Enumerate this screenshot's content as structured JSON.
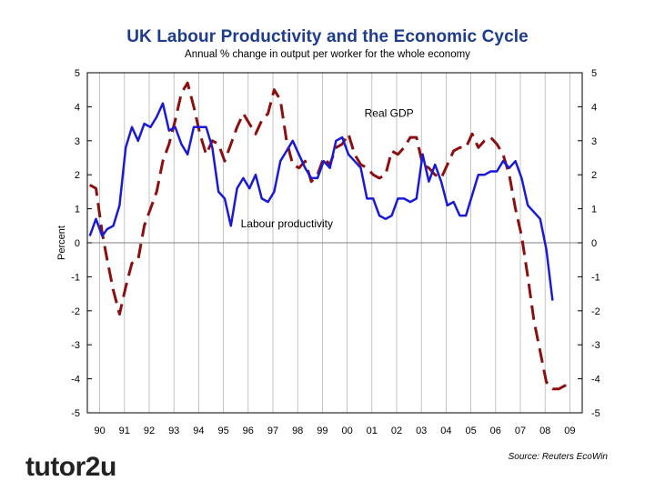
{
  "header": {
    "title": "UK Labour Productivity and the Economic Cycle",
    "subtitle": "Annual % change in output per worker for the whole economy"
  },
  "footer": {
    "source": "Source: Reuters EcoWin",
    "logo": "tutor2u"
  },
  "colors": {
    "productivity": "#1a1ad6",
    "gdp": "#8b0f0f",
    "title": "#1f3c8c",
    "grid": "#b4b4b4"
  },
  "chart_data": {
    "type": "line",
    "title": "UK Labour Productivity and the Economic Cycle",
    "subtitle": "Annual % change in output per worker for the whole economy",
    "ylabel": "Percent",
    "xlabel": "",
    "ylim": [
      -5,
      5
    ],
    "xlim": [
      1989.5,
      2009.5
    ],
    "yticks": [
      5,
      4,
      3,
      2,
      1,
      0,
      -1,
      -2,
      -3,
      -4,
      -5
    ],
    "xtick_labels": [
      "90",
      "91",
      "92",
      "93",
      "94",
      "95",
      "96",
      "97",
      "98",
      "99",
      "00",
      "01",
      "02",
      "03",
      "04",
      "05",
      "06",
      "07",
      "08",
      "09"
    ],
    "grid": "vertical",
    "annotations": [
      {
        "text": "Real GDP",
        "x": 2000.7,
        "y": 3.7
      },
      {
        "text": "Labour productivity",
        "x": 1995.7,
        "y": 0.45
      }
    ],
    "series": [
      {
        "name": "Real GDP",
        "style": "dashed",
        "x": [
          1989.6,
          1989.85,
          1990.1,
          1990.3,
          1990.55,
          1990.8,
          1991.05,
          1991.3,
          1991.55,
          1991.8,
          1992.05,
          1992.3,
          1992.55,
          1992.8,
          1993.05,
          1993.3,
          1993.55,
          1993.8,
          1994.05,
          1994.3,
          1994.55,
          1994.8,
          1995.05,
          1995.3,
          1995.55,
          1995.8,
          1996.05,
          1996.3,
          1996.55,
          1996.8,
          1997.05,
          1997.3,
          1997.55,
          1997.8,
          1998.05,
          1998.3,
          1998.55,
          1998.8,
          1999.05,
          1999.3,
          1999.55,
          1999.8,
          2000.05,
          2000.3,
          2000.55,
          2000.8,
          2001.05,
          2001.3,
          2001.55,
          2001.8,
          2002.05,
          2002.3,
          2002.55,
          2002.8,
          2003.05,
          2003.3,
          2003.55,
          2003.8,
          2004.05,
          2004.3,
          2004.55,
          2004.8,
          2005.05,
          2005.3,
          2005.55,
          2005.8,
          2006.05,
          2006.3,
          2006.55,
          2006.8,
          2007.05,
          2007.3,
          2007.55,
          2007.8,
          2008.05,
          2008.3,
          2008.55,
          2008.8,
          2009.0
        ],
        "values": [
          1.7,
          1.6,
          0.3,
          -0.5,
          -1.4,
          -2.1,
          -1.3,
          -0.6,
          -0.5,
          0.5,
          1.0,
          1.5,
          2.4,
          2.9,
          3.6,
          4.4,
          4.7,
          4.0,
          3.2,
          2.6,
          3.0,
          2.9,
          2.4,
          2.9,
          3.4,
          3.8,
          3.5,
          3.2,
          3.6,
          3.8,
          4.5,
          4.2,
          3.0,
          2.3,
          2.2,
          2.4,
          1.8,
          2.0,
          2.5,
          2.3,
          2.8,
          2.9,
          3.2,
          2.6,
          2.3,
          2.2,
          2.0,
          1.9,
          2.0,
          2.7,
          2.6,
          2.8,
          3.1,
          3.1,
          2.3,
          2.2,
          2.0,
          1.9,
          2.3,
          2.7,
          2.8,
          2.8,
          3.2,
          2.8,
          3.0,
          3.1,
          2.9,
          2.6,
          2.0,
          1.0,
          0.2,
          -1.0,
          -2.3,
          -3.2,
          -4.1,
          -4.3,
          -4.3,
          -4.2,
          -4.2
        ]
      },
      {
        "name": "Labour productivity",
        "style": "solid",
        "x": [
          1989.6,
          1989.85,
          1990.1,
          1990.3,
          1990.55,
          1990.8,
          1991.05,
          1991.3,
          1991.55,
          1991.8,
          1992.05,
          1992.3,
          1992.55,
          1992.8,
          1993.05,
          1993.3,
          1993.55,
          1993.8,
          1994.05,
          1994.3,
          1994.55,
          1994.8,
          1995.05,
          1995.3,
          1995.55,
          1995.8,
          1996.05,
          1996.3,
          1996.55,
          1996.8,
          1997.05,
          1997.3,
          1997.55,
          1997.8,
          1998.05,
          1998.3,
          1998.55,
          1998.8,
          1999.05,
          1999.3,
          1999.55,
          1999.8,
          2000.05,
          2000.3,
          2000.55,
          2000.8,
          2001.05,
          2001.3,
          2001.55,
          2001.8,
          2002.05,
          2002.3,
          2002.55,
          2002.8,
          2003.05,
          2003.3,
          2003.55,
          2003.8,
          2004.05,
          2004.3,
          2004.55,
          2004.8,
          2005.05,
          2005.3,
          2005.55,
          2005.8,
          2006.05,
          2006.3,
          2006.55,
          2006.8,
          2007.05,
          2007.3,
          2007.55,
          2007.8,
          2008.05,
          2008.3
        ],
        "values": [
          0.2,
          0.7,
          0.2,
          0.4,
          0.5,
          1.1,
          2.8,
          3.4,
          3.0,
          3.5,
          3.4,
          3.7,
          4.1,
          3.3,
          3.4,
          2.9,
          2.6,
          3.4,
          3.4,
          3.4,
          2.8,
          1.5,
          1.3,
          0.5,
          1.6,
          1.9,
          1.6,
          2.0,
          1.3,
          1.2,
          1.5,
          2.4,
          2.7,
          3.0,
          2.6,
          2.2,
          1.9,
          1.9,
          2.4,
          2.2,
          3.0,
          3.1,
          2.6,
          2.4,
          2.2,
          1.3,
          1.3,
          0.8,
          0.7,
          0.8,
          1.3,
          1.3,
          1.2,
          1.3,
          2.6,
          1.8,
          2.3,
          1.8,
          1.1,
          1.2,
          0.8,
          0.8,
          1.4,
          2.0,
          2.0,
          2.1,
          2.1,
          2.4,
          2.2,
          2.4,
          1.9,
          1.1,
          0.9,
          0.7,
          -0.2,
          -1.7
        ]
      }
    ]
  }
}
